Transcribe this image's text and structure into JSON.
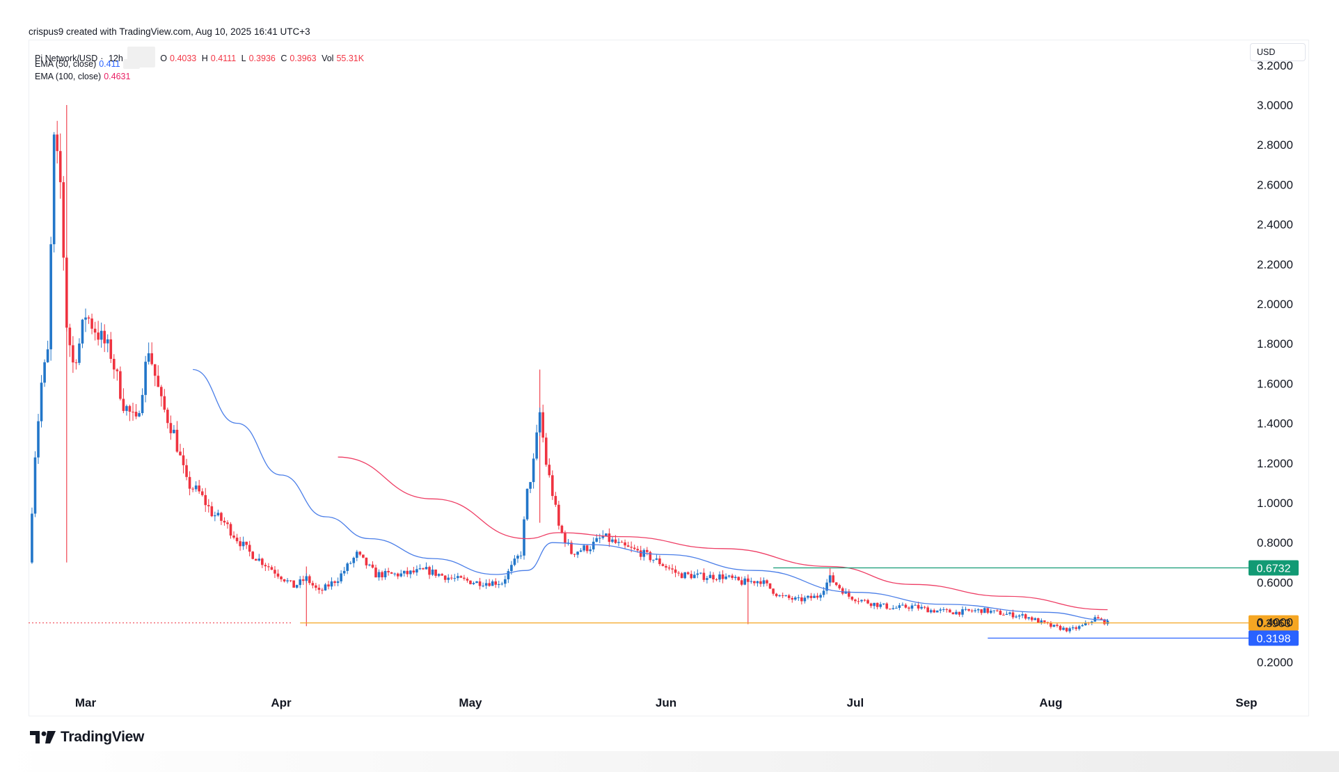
{
  "header": {
    "credit": "crispus9 created with TradingView.com, Aug 10, 2025 16:41 UTC+3"
  },
  "legend": {
    "symbol": "Pi Network/USD",
    "interval": "12h",
    "o_label": "O",
    "o_value": "0.4033",
    "h_label": "H",
    "h_value": "0.4111",
    "l_label": "L",
    "l_value": "0.3936",
    "c_label": "C",
    "c_value": "0.3963",
    "vol_label": "Vol",
    "vol_value": "55.31K",
    "ema50_label": "EMA (50, close)",
    "ema50_value": "0.411",
    "ema100_label": "EMA (100, close)",
    "ema100_value": "0.4631"
  },
  "currency_button": "USD",
  "logo": {
    "text": "TradingView"
  },
  "colors": {
    "up": "#2276c9",
    "down": "#ef3340",
    "ema50": "#4a7ee8",
    "ema100": "#ee3d64",
    "resistance": "#129a74",
    "price": "#f5a623",
    "support": "#2962ff"
  },
  "chart_data": {
    "type": "candlestick",
    "title": "",
    "ylim": [
      0.0,
      3.2
    ],
    "y_ticks": [
      "0.2000",
      "0.4000",
      "0.6000",
      "0.8000",
      "1.0000",
      "1.2000",
      "1.4000",
      "1.6000",
      "1.8000",
      "2.0000",
      "2.2000",
      "2.4000",
      "2.6000",
      "2.8000",
      "3.0000",
      "3.2000"
    ],
    "x_ticks": [
      {
        "label": "Mar",
        "date": "2025-03-01"
      },
      {
        "label": "Apr",
        "date": "2025-04-01"
      },
      {
        "label": "May",
        "date": "2025-05-01"
      },
      {
        "label": "Jun",
        "date": "2025-06-01"
      },
      {
        "label": "Jul",
        "date": "2025-07-01"
      },
      {
        "label": "Aug",
        "date": "2025-08-01"
      },
      {
        "label": "Sep",
        "date": "2025-09-01"
      }
    ],
    "price_path": [
      [
        "2025-02-20",
        0.7
      ],
      [
        "2025-02-21",
        1.25
      ],
      [
        "2025-02-22",
        1.6
      ],
      [
        "2025-02-23",
        1.75
      ],
      [
        "2025-02-24",
        2.8
      ],
      [
        "2025-02-25",
        2.6
      ],
      [
        "2025-02-26",
        1.9
      ],
      [
        "2025-02-27",
        1.7
      ],
      [
        "2025-02-28",
        1.8
      ],
      [
        "2025-03-01",
        1.95
      ],
      [
        "2025-03-03",
        1.85
      ],
      [
        "2025-03-05",
        1.75
      ],
      [
        "2025-03-07",
        1.5
      ],
      [
        "2025-03-09",
        1.4
      ],
      [
        "2025-03-11",
        1.78
      ],
      [
        "2025-03-13",
        1.5
      ],
      [
        "2025-03-15",
        1.35
      ],
      [
        "2025-03-17",
        1.1
      ],
      [
        "2025-03-19",
        1.05
      ],
      [
        "2025-03-21",
        0.95
      ],
      [
        "2025-03-23",
        0.9
      ],
      [
        "2025-03-25",
        0.82
      ],
      [
        "2025-03-27",
        0.75
      ],
      [
        "2025-03-30",
        0.68
      ],
      [
        "2025-04-03",
        0.58
      ],
      [
        "2025-04-05",
        0.62
      ],
      [
        "2025-04-07",
        0.55
      ],
      [
        "2025-04-10",
        0.62
      ],
      [
        "2025-04-13",
        0.74
      ],
      [
        "2025-04-16",
        0.64
      ],
      [
        "2025-04-20",
        0.64
      ],
      [
        "2025-04-24",
        0.66
      ],
      [
        "2025-04-28",
        0.62
      ],
      [
        "2025-05-02",
        0.6
      ],
      [
        "2025-05-06",
        0.6
      ],
      [
        "2025-05-09",
        0.75
      ],
      [
        "2025-05-10",
        1.05
      ],
      [
        "2025-05-11",
        1.2
      ],
      [
        "2025-05-12",
        1.45
      ],
      [
        "2025-05-13",
        1.2
      ],
      [
        "2025-05-14",
        1.05
      ],
      [
        "2025-05-15",
        0.88
      ],
      [
        "2025-05-17",
        0.75
      ],
      [
        "2025-05-20",
        0.78
      ],
      [
        "2025-05-22",
        0.83
      ],
      [
        "2025-05-25",
        0.78
      ],
      [
        "2025-05-28",
        0.75
      ],
      [
        "2025-05-31",
        0.7
      ],
      [
        "2025-06-03",
        0.64
      ],
      [
        "2025-06-07",
        0.63
      ],
      [
        "2025-06-10",
        0.63
      ],
      [
        "2025-06-13",
        0.6
      ],
      [
        "2025-06-16",
        0.61
      ],
      [
        "2025-06-19",
        0.53
      ],
      [
        "2025-06-22",
        0.51
      ],
      [
        "2025-06-25",
        0.53
      ],
      [
        "2025-06-27",
        0.62
      ],
      [
        "2025-06-30",
        0.53
      ],
      [
        "2025-07-03",
        0.5
      ],
      [
        "2025-07-07",
        0.47
      ],
      [
        "2025-07-10",
        0.48
      ],
      [
        "2025-07-13",
        0.46
      ],
      [
        "2025-07-17",
        0.45
      ],
      [
        "2025-07-21",
        0.46
      ],
      [
        "2025-07-25",
        0.44
      ],
      [
        "2025-07-28",
        0.43
      ],
      [
        "2025-08-01",
        0.38
      ],
      [
        "2025-08-04",
        0.36
      ],
      [
        "2025-08-06",
        0.38
      ],
      [
        "2025-08-08",
        0.42
      ],
      [
        "2025-08-10",
        0.3963
      ]
    ],
    "ema50": [
      [
        "2025-03-18",
        1.67
      ],
      [
        "2025-03-25",
        1.4
      ],
      [
        "2025-04-01",
        1.14
      ],
      [
        "2025-04-08",
        0.93
      ],
      [
        "2025-04-15",
        0.82
      ],
      [
        "2025-04-25",
        0.72
      ],
      [
        "2025-05-05",
        0.64
      ],
      [
        "2025-05-10",
        0.66
      ],
      [
        "2025-05-14",
        0.8
      ],
      [
        "2025-05-20",
        0.79
      ],
      [
        "2025-06-01",
        0.74
      ],
      [
        "2025-06-15",
        0.66
      ],
      [
        "2025-07-01",
        0.55
      ],
      [
        "2025-07-15",
        0.49
      ],
      [
        "2025-07-31",
        0.45
      ],
      [
        "2025-08-10",
        0.411
      ]
    ],
    "ema100": [
      [
        "2025-04-10",
        1.23
      ],
      [
        "2025-04-25",
        1.02
      ],
      [
        "2025-05-10",
        0.82
      ],
      [
        "2025-05-15",
        0.85
      ],
      [
        "2025-05-25",
        0.83
      ],
      [
        "2025-06-10",
        0.77
      ],
      [
        "2025-06-27",
        0.68
      ],
      [
        "2025-07-10",
        0.59
      ],
      [
        "2025-07-25",
        0.53
      ],
      [
        "2025-08-10",
        0.4631
      ]
    ],
    "spikes": [
      [
        "2025-02-26",
        0.7,
        3.0
      ],
      [
        "2025-04-05",
        0.38,
        0.68
      ],
      [
        "2025-05-12",
        0.9,
        1.67
      ],
      [
        "2025-06-14",
        0.39,
        0.64
      ],
      [
        "2025-06-27",
        0.58,
        0.67
      ]
    ],
    "levels": [
      {
        "label": "0.6732",
        "value": 0.6732,
        "start": "2025-06-18",
        "kind": "resistance"
      },
      {
        "label": "0.3963",
        "value": 0.3963,
        "start": "2025-04-04",
        "kind": "price"
      },
      {
        "label": "0.3198",
        "value": 0.3198,
        "start": "2025-07-22",
        "kind": "support"
      }
    ]
  }
}
